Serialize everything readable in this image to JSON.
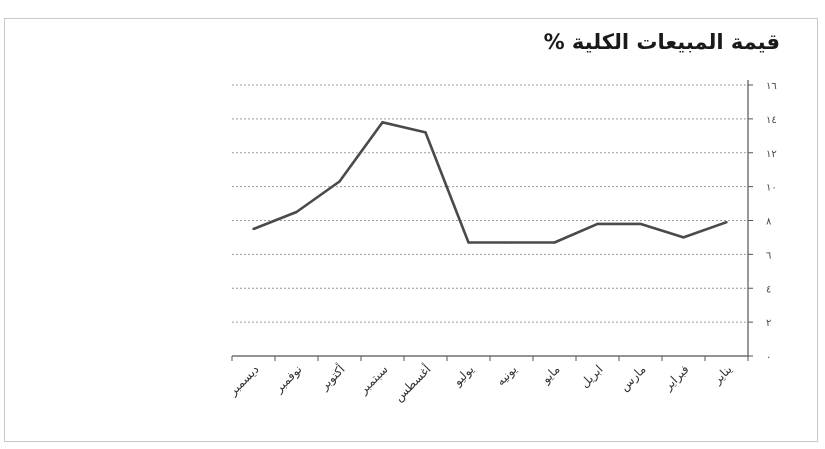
{
  "chart_data": {
    "type": "line",
    "title": "قيمة المبيعات الكلية %",
    "categories": [
      "ديسمبر",
      "نوفمبر",
      "أكتوبر",
      "سبتمبر",
      "أغسطس",
      "يوليو",
      "يونيه",
      "مايو",
      "ابريل",
      "مارس",
      "فبراير",
      "يناير"
    ],
    "values": [
      7.5,
      8.5,
      10.3,
      13.8,
      13.2,
      6.7,
      6.7,
      6.7,
      7.8,
      7.8,
      7.0,
      7.9
    ],
    "ytick_labels": [
      "٠",
      "٢",
      "٤",
      "٦",
      "٨",
      "١٠",
      "١٢",
      "١٤",
      "١٦"
    ],
    "ylim": [
      0,
      16
    ],
    "yaxis_position": "right",
    "grid": true,
    "legend": "none"
  }
}
